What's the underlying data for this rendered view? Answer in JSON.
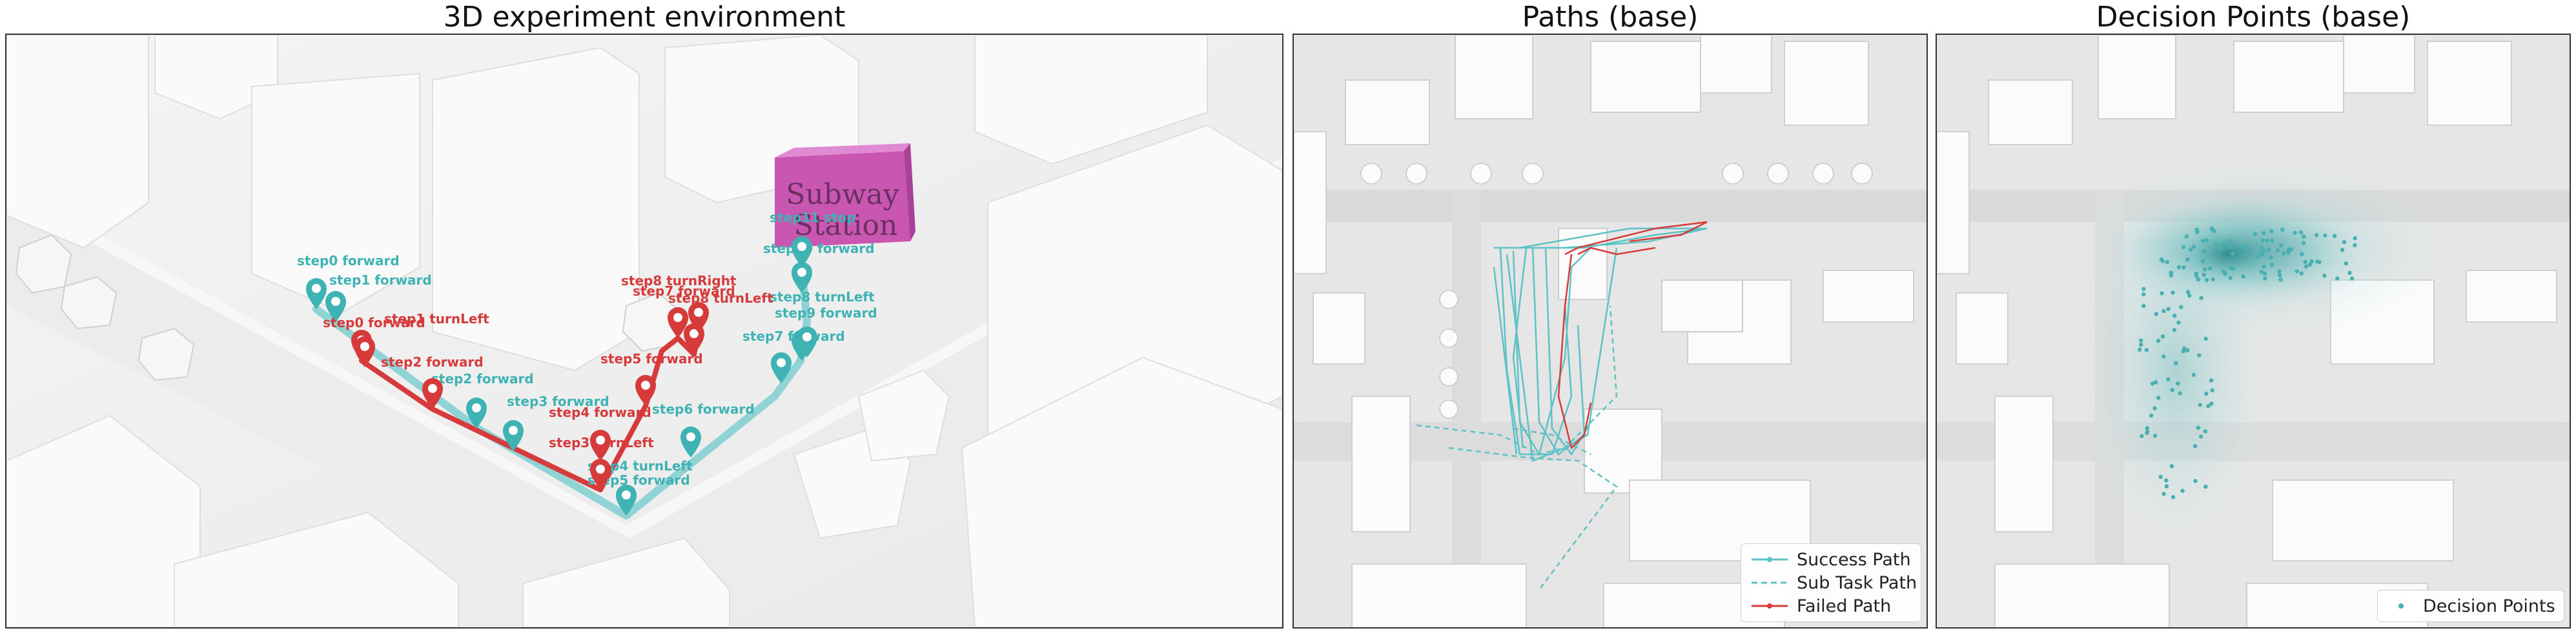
{
  "panels": {
    "env": {
      "title": "3D experiment environment"
    },
    "paths": {
      "title": "Paths (base)"
    },
    "decision": {
      "title": "Decision Points (base)"
    }
  },
  "scene": {
    "station_line1": "Subway",
    "station_line2": "Station",
    "station_color": "#d966c2",
    "success_color": "#3fb2b4",
    "failed_color": "#d63a3a",
    "success_steps": [
      {
        "label": "step0 forward"
      },
      {
        "label": "step1 forward"
      },
      {
        "label": "step2 forward"
      },
      {
        "label": "step3 forward"
      },
      {
        "label": "step4 turnLeft"
      },
      {
        "label": "step5 forward"
      },
      {
        "label": "step6 forward"
      },
      {
        "label": "step7 forward"
      },
      {
        "label": "step8 turnLeft"
      },
      {
        "label": "step9 forward"
      },
      {
        "label": "step10 forward"
      },
      {
        "label": "step11 stop"
      }
    ],
    "failed_steps": [
      {
        "label": "step0 forward"
      },
      {
        "label": "step1 turnLeft"
      },
      {
        "label": "step2 forward"
      },
      {
        "label": "step3 turnLeft"
      },
      {
        "label": "step4 forward"
      },
      {
        "label": "step5 forward"
      },
      {
        "label": "step7 forward"
      },
      {
        "label": "step8 turnLeft"
      },
      {
        "label": "step8 turnRight"
      }
    ]
  },
  "legend_paths": {
    "success": "Success Path",
    "subtask": "Sub Task Path",
    "failed": "Failed Path"
  },
  "legend_decision": {
    "points": "Decision Points"
  }
}
